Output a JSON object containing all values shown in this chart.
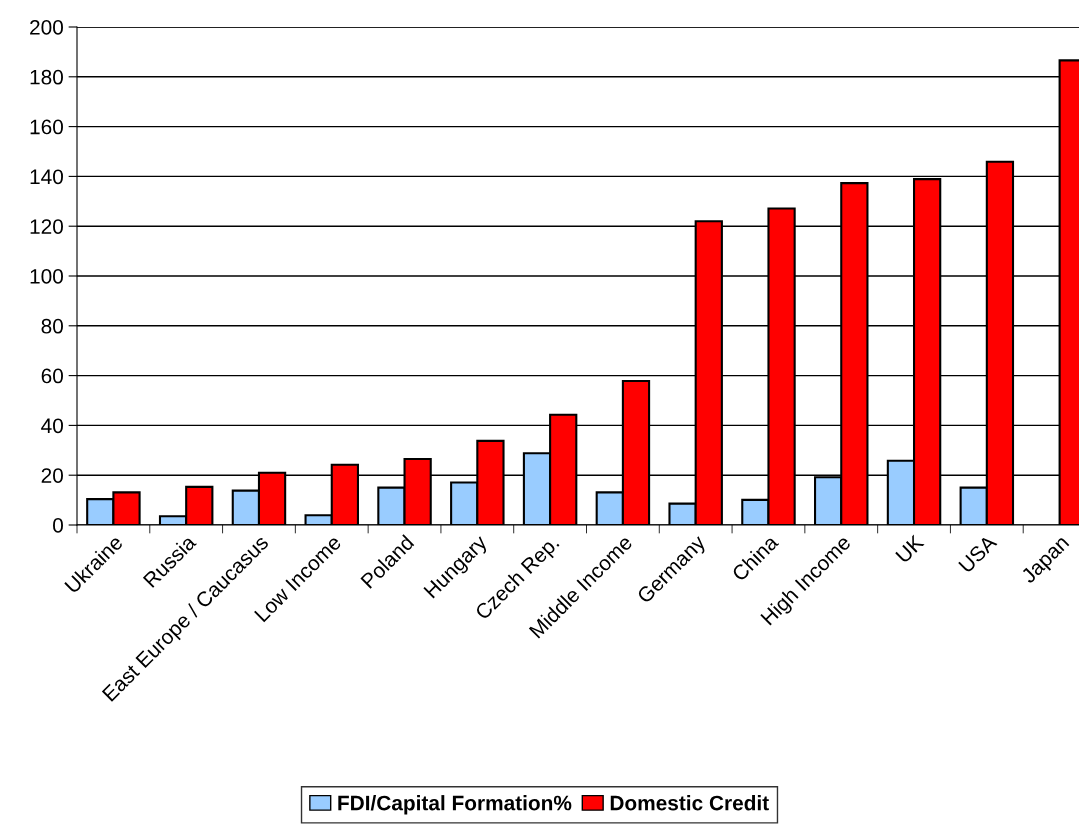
{
  "chart_data": {
    "type": "bar",
    "categories": [
      "Ukraine",
      "Russia",
      "East Europe / Caucasus",
      "Low Income",
      "Poland",
      "Hungary",
      "Czech Rep.",
      "Middle Income",
      "Germany",
      "China",
      "High Income",
      "UK",
      "USA",
      "Japan"
    ],
    "series": [
      {
        "name": "FDI/Capital Formation%",
        "color": "#99ccff",
        "values": [
          10.4,
          3.5,
          13.8,
          3.9,
          15.0,
          17.1,
          28.8,
          13.1,
          8.6,
          10.1,
          19.2,
          25.8,
          15.0,
          null
        ]
      },
      {
        "name": "Domestic Credit",
        "color": "#ff0000",
        "values": [
          13.1,
          15.3,
          21.0,
          24.2,
          26.5,
          33.8,
          44.3,
          57.8,
          122.0,
          127.1,
          137.3,
          138.9,
          145.9,
          186.6
        ]
      }
    ],
    "ylim": [
      0,
      200
    ],
    "yticks": [
      0,
      20,
      40,
      60,
      80,
      100,
      120,
      140,
      160,
      180,
      200
    ],
    "grid": "y",
    "legend": "bottom"
  }
}
